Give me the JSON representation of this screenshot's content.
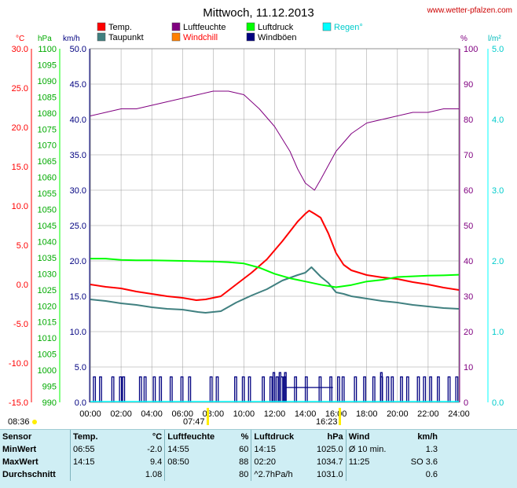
{
  "title": "Mittwoch, 11.12.2013",
  "site": "www.wetter-pfalzen.com",
  "legend": [
    {
      "label": "Temp.",
      "color": "#ff0000"
    },
    {
      "label": "Luftfeuchte",
      "color": "#800080"
    },
    {
      "label": "Luftdruck",
      "color": "#00ff00"
    },
    {
      "label": "Regen°",
      "color": "#00ffff"
    },
    {
      "label": "Taupunkt",
      "color": "#408080"
    },
    {
      "label": "Windchill",
      "color": "#ff8000"
    },
    {
      "label": "Windböen",
      "color": "#000080"
    }
  ],
  "axes": {
    "temp": {
      "unit": "°C",
      "color": "#ff0000",
      "min": -15,
      "max": 30,
      "ticks": [
        "30.0",
        "25.0",
        "20.0",
        "15.0",
        "10.0",
        "5.0",
        "0.0",
        "-5.0",
        "-10.0",
        "-15.0"
      ]
    },
    "pressure": {
      "unit": "hPa",
      "color": "#00cc00",
      "min": 990,
      "max": 1100,
      "ticks": [
        "1100",
        "1095",
        "1090",
        "1085",
        "1080",
        "1075",
        "1070",
        "1065",
        "1060",
        "1055",
        "1050",
        "1045",
        "1040",
        "1035",
        "1030",
        "1025",
        "1020",
        "1015",
        "1010",
        "1005",
        "1000",
        "995",
        "990"
      ]
    },
    "wind": {
      "unit": "km/h",
      "color": "#000080",
      "min": 0,
      "max": 50,
      "ticks": [
        "50.0",
        "45.0",
        "40.0",
        "35.0",
        "30.0",
        "25.0",
        "20.0",
        "15.0",
        "10.0",
        "5.0",
        "0.0"
      ]
    },
    "humidity": {
      "unit": "%",
      "color": "#800080",
      "min": 0,
      "max": 100,
      "ticks": [
        "100",
        "90",
        "80",
        "70",
        "60",
        "50",
        "40",
        "30",
        "20",
        "10",
        "0"
      ]
    },
    "rain": {
      "unit": "l/m²",
      "color": "#00cccc",
      "min": 0,
      "max": 5,
      "ticks": [
        "5.0",
        "4.0",
        "3.0",
        "2.0",
        "1.0",
        "0.0"
      ]
    },
    "time": {
      "ticks": [
        "00:00",
        "02:00",
        "04:00",
        "06:00",
        "08:00",
        "10:00",
        "12:00",
        "14:00",
        "16:00",
        "18:00",
        "20:00",
        "22:00",
        "24:00"
      ]
    }
  },
  "sun": {
    "sunrise": "08:36",
    "noon": "07:47",
    "sunset": "16:23"
  },
  "chart_data": {
    "type": "line",
    "x_unit": "hours",
    "series": [
      {
        "name": "Temp.",
        "axis": "temp",
        "color": "#ff0000",
        "x": [
          0,
          1,
          2,
          3,
          4,
          5,
          6,
          6.9,
          7.5,
          8.5,
          9.5,
          10.5,
          11.5,
          12.5,
          13.5,
          14,
          14.25,
          14.6,
          15,
          15.5,
          16,
          16.5,
          17,
          18,
          19,
          20,
          21,
          22,
          23,
          24
        ],
        "y": [
          0,
          -0.3,
          -0.5,
          -0.9,
          -1.2,
          -1.5,
          -1.7,
          -2.0,
          -1.9,
          -1.5,
          0,
          1.5,
          3.2,
          5.5,
          8.0,
          9.0,
          9.4,
          9.0,
          8.5,
          6.5,
          4.0,
          2.5,
          1.8,
          1.2,
          0.9,
          0.7,
          0.3,
          0,
          -0.4,
          -0.7
        ]
      },
      {
        "name": "Taupunkt",
        "axis": "temp",
        "color": "#408080",
        "x": [
          0,
          1,
          2,
          3,
          4,
          5,
          6,
          7,
          7.5,
          8.5,
          9.5,
          10.5,
          11.5,
          12.5,
          13.5,
          14,
          14.4,
          15,
          15.5,
          16,
          16.5,
          17,
          18,
          19,
          20,
          21,
          22,
          23,
          24
        ],
        "y": [
          -1.9,
          -2.1,
          -2.4,
          -2.6,
          -2.9,
          -3.1,
          -3.2,
          -3.5,
          -3.6,
          -3.4,
          -2.3,
          -1.4,
          -0.6,
          0.5,
          1.2,
          1.5,
          2.2,
          1.0,
          0.2,
          -1.0,
          -1.2,
          -1.5,
          -1.8,
          -2.1,
          -2.3,
          -2.6,
          -2.8,
          -3.0,
          -3.1
        ]
      },
      {
        "name": "Luftfeuchte",
        "axis": "humidity",
        "color": "#800080",
        "x": [
          0,
          1,
          2,
          3,
          4,
          5,
          6,
          7,
          8,
          9,
          10,
          11,
          12,
          13,
          13.5,
          14,
          14.6,
          15,
          16,
          17,
          18,
          19,
          20,
          21,
          22,
          23,
          24
        ],
        "y": [
          81,
          82,
          83,
          83,
          84,
          85,
          86,
          87,
          88,
          88,
          87,
          83,
          78,
          71,
          66,
          62,
          60,
          63,
          71,
          76,
          79,
          80,
          81,
          82,
          82,
          83,
          83
        ]
      },
      {
        "name": "Luftdruck",
        "axis": "pressure",
        "color": "#00ff00",
        "x": [
          0,
          1,
          2,
          3,
          4,
          5,
          6,
          7,
          8,
          9,
          10,
          11,
          12,
          13,
          14,
          15,
          16,
          17,
          18,
          19,
          20,
          21,
          22,
          23,
          24
        ],
        "y": [
          1034.7,
          1034.7,
          1034.3,
          1034.2,
          1034.2,
          1034.1,
          1034.0,
          1033.9,
          1033.8,
          1033.6,
          1033.2,
          1031.9,
          1030.0,
          1028.6,
          1027.6,
          1026.6,
          1025.8,
          1026.5,
          1027.6,
          1028.1,
          1029.0,
          1029.2,
          1029.4,
          1029.5,
          1029.7
        ]
      }
    ],
    "wind_gust_hours": [
      0.2,
      0.6,
      1.4,
      1.9,
      2.1,
      3.2,
      3.5,
      4.1,
      4.5,
      5.2,
      5.9,
      6.4,
      7.8,
      8.2,
      9.4,
      9.9,
      10.3,
      11.2,
      11.7,
      12.1,
      12.4,
      12.6,
      13.3,
      14.0,
      14.9,
      15.6,
      16.1,
      16.4,
      17.2,
      17.8,
      18.4,
      18.9,
      19.3,
      19.6,
      20.2,
      20.6,
      21.3,
      21.7,
      22.1,
      22.6,
      23.3,
      23.8
    ],
    "wind_gust_values": [
      3.6,
      3.6,
      3.6,
      3.6,
      3.6,
      3.6,
      3.6,
      3.6,
      3.6,
      3.6,
      3.6,
      3.6,
      3.6,
      3.6,
      3.6,
      3.6,
      3.6,
      3.6,
      3.6,
      3.6,
      3.6,
      3.6,
      3.6,
      3.6,
      3.6,
      3.6,
      3.6,
      3.6,
      3.6,
      3.6,
      3.6,
      3.6,
      3.6,
      3.6,
      3.6,
      3.6,
      3.6,
      3.6,
      3.6,
      3.6,
      3.6,
      3.6
    ],
    "wind_tall_spikes": [
      {
        "x": 11.9,
        "y": 4.2
      },
      {
        "x": 12.3,
        "y": 4.2
      },
      {
        "x": 12.65,
        "y": 4.2
      },
      {
        "x": 18.9,
        "y": 4.2
      }
    ],
    "rain_total": 0
  },
  "stats": {
    "headers": [
      "Sensor",
      "Temp.",
      "°C",
      "Luftfeuchte",
      "%",
      "Luftdruck",
      "hPa",
      "Wind",
      "km/h"
    ],
    "rows": [
      {
        "label": "MinWert",
        "t_time": "06:55",
        "t_val": "-2.0",
        "h_time": "14:55",
        "h_val": "60",
        "p_time": "14:15",
        "p_val": "1025.0",
        "w_time": "Ø 10 min.",
        "w_val": "1.3"
      },
      {
        "label": "MaxWert",
        "t_time": "14:15",
        "t_val": "9.4",
        "h_time": "08:50",
        "h_val": "88",
        "p_time": "02:20",
        "p_val": "1034.7",
        "w_time": "11:25",
        "w_val": "SO 3.6"
      },
      {
        "label": "Durchschnitt",
        "t_time": "",
        "t_val": "1.08",
        "h_time": "",
        "h_val": "80",
        "p_time": "^2.7hPa/h",
        "p_val": "1031.0",
        "w_time": "",
        "w_val": "0.6"
      }
    ]
  }
}
